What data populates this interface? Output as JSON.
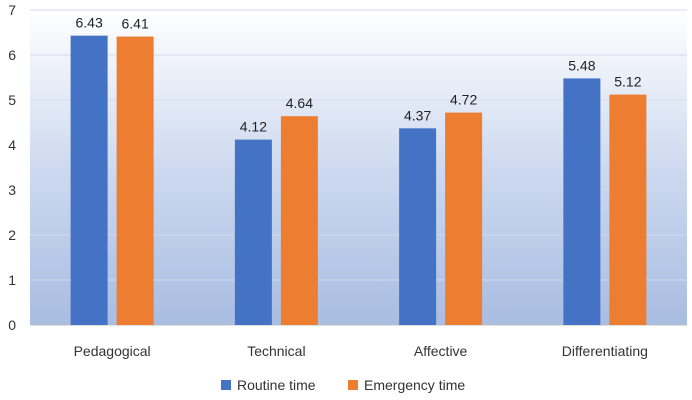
{
  "chart_data": {
    "type": "bar",
    "title": "",
    "xlabel": "",
    "ylabel": "",
    "ylim": [
      0,
      7
    ],
    "yticks": [
      0,
      1,
      2,
      3,
      4,
      5,
      6,
      7
    ],
    "grid": true,
    "legend_position": "bottom",
    "categories": [
      "Pedagogical",
      "Technical",
      "Affective",
      "Differentiating"
    ],
    "series": [
      {
        "name": "Routine time",
        "color": "#4472C4",
        "values": [
          6.43,
          4.12,
          4.37,
          5.48
        ],
        "labels": [
          "6.43",
          "4.12",
          "4.37",
          "5.48"
        ]
      },
      {
        "name": "Emergency time",
        "color": "#ED7D31",
        "values": [
          6.41,
          4.64,
          4.72,
          5.12
        ],
        "labels": [
          "6.41",
          "4.64",
          "4.72",
          "5.12"
        ]
      }
    ]
  }
}
